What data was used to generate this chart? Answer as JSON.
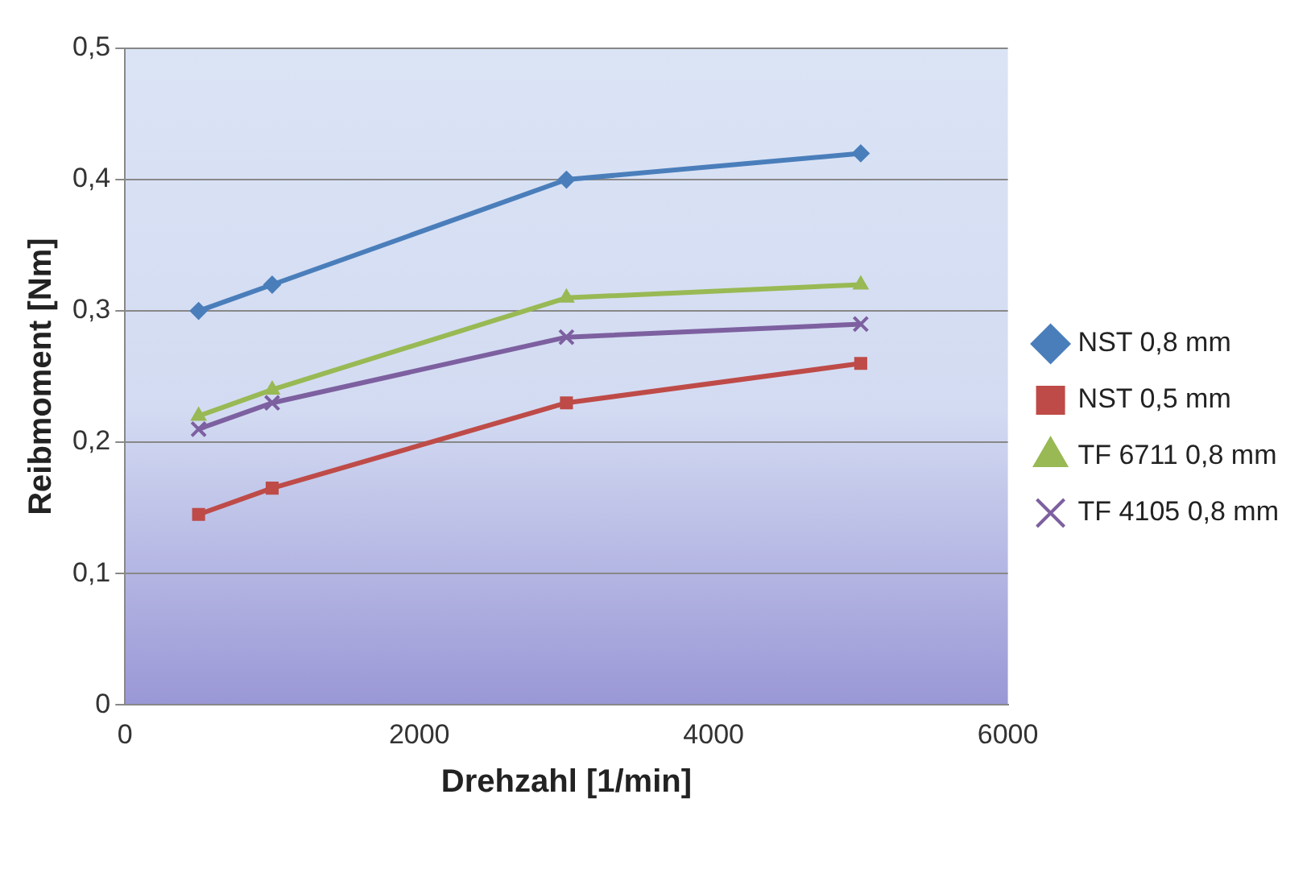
{
  "chart_data": {
    "type": "line",
    "xlabel": "Drehzahl [1/min]",
    "ylabel": "Reibmoment [Nm]",
    "x": [
      500,
      1000,
      3000,
      5000
    ],
    "series": [
      {
        "name": "NST 0,8 mm",
        "color": "#4a7ebb",
        "marker": "diamond",
        "values": [
          0.3,
          0.32,
          0.4,
          0.42
        ]
      },
      {
        "name": "NST 0,5 mm",
        "color": "#be4b48",
        "marker": "square",
        "values": [
          0.145,
          0.165,
          0.23,
          0.26
        ]
      },
      {
        "name": "TF 6711 0,8 mm",
        "color": "#98b954",
        "marker": "triangle",
        "values": [
          0.22,
          0.24,
          0.31,
          0.32
        ]
      },
      {
        "name": "TF 4105 0,8 mm",
        "color": "#7d60a0",
        "marker": "cross",
        "values": [
          0.21,
          0.23,
          0.28,
          0.29
        ]
      }
    ],
    "xlim": [
      0,
      6000
    ],
    "xticks": [
      0,
      2000,
      4000,
      6000
    ],
    "ylim": [
      0,
      0.5
    ],
    "yticks": [
      {
        "value": 0,
        "label": "0"
      },
      {
        "value": 0.1,
        "label": "0,1"
      },
      {
        "value": 0.2,
        "label": "0,2"
      },
      {
        "value": 0.3,
        "label": "0,3"
      },
      {
        "value": 0.4,
        "label": "0,4"
      },
      {
        "value": 0.5,
        "label": "0,5"
      }
    ],
    "grid": "y",
    "legend": "right"
  }
}
